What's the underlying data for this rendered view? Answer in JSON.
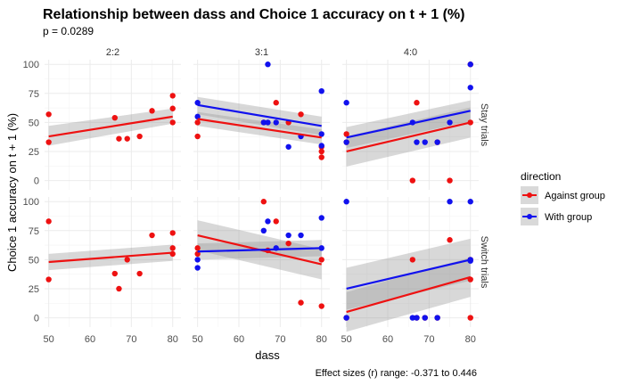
{
  "chart_data": {
    "type": "scatter",
    "title": "Relationship between dass and Choice 1 accuracy on t + 1 (%)",
    "subtitle": "p = 0.0289",
    "xlabel": "dass",
    "ylabel": "Choice 1 accuracy on t + 1 (%)",
    "caption": "Effect sizes (r) range: -0.371 to 0.446",
    "xlim": [
      49,
      82
    ],
    "ylim": [
      -8,
      104
    ],
    "x_ticks": [
      50,
      60,
      70,
      80
    ],
    "y_ticks": [
      0,
      25,
      50,
      75,
      100
    ],
    "grid": true,
    "columns": [
      "2:2",
      "3:1",
      "4:0"
    ],
    "rows": [
      "Stay trials",
      "Switch trials"
    ],
    "legend": {
      "title": "direction",
      "position": "right",
      "entries": [
        {
          "label": "Against group",
          "color": "#ee1111"
        },
        {
          "label": "With group",
          "color": "#1111ee"
        }
      ]
    },
    "panels": [
      {
        "column": "2:2",
        "row": "Stay trials",
        "series": [
          {
            "name": "Against group",
            "color": "#ee1111",
            "points": [
              [
                50,
                57
              ],
              [
                50,
                33
              ],
              [
                66,
                54
              ],
              [
                67,
                36
              ],
              [
                69,
                36
              ],
              [
                72,
                38
              ],
              [
                75,
                60
              ],
              [
                80,
                73
              ],
              [
                80,
                62
              ],
              [
                80,
                50
              ]
            ],
            "fit": {
              "x": [
                50,
                80
              ],
              "y": [
                38,
                55
              ]
            },
            "band": {
              "upper": [
                47,
                62
              ],
              "lower": [
                30,
                49
              ]
            }
          }
        ]
      },
      {
        "column": "3:1",
        "row": "Stay trials",
        "series": [
          {
            "name": "Against group",
            "color": "#ee1111",
            "points": [
              [
                50,
                50
              ],
              [
                50,
                38
              ],
              [
                66,
                50
              ],
              [
                69,
                67
              ],
              [
                72,
                50
              ],
              [
                75,
                57
              ],
              [
                80,
                25
              ],
              [
                80,
                20
              ],
              [
                80,
                29
              ]
            ],
            "fit": {
              "x": [
                50,
                80
              ],
              "y": [
                53,
                37
              ]
            },
            "band": {
              "upper": [
                59,
                44
              ],
              "lower": [
                47,
                31
              ]
            }
          },
          {
            "name": "With group",
            "color": "#1111ee",
            "points": [
              [
                50,
                67
              ],
              [
                50,
                55
              ],
              [
                66,
                50
              ],
              [
                67,
                100
              ],
              [
                67,
                50
              ],
              [
                69,
                50
              ],
              [
                72,
                29
              ],
              [
                75,
                38
              ],
              [
                80,
                77
              ],
              [
                80,
                40
              ],
              [
                80,
                30
              ]
            ],
            "fit": {
              "x": [
                50,
                80
              ],
              "y": [
                65,
                47
              ]
            },
            "band": {
              "upper": [
                72,
                55
              ],
              "lower": [
                57,
                39
              ]
            }
          }
        ]
      },
      {
        "column": "4:0",
        "row": "Stay trials",
        "series": [
          {
            "name": "Against group",
            "color": "#ee1111",
            "points": [
              [
                50,
                40
              ],
              [
                50,
                33
              ],
              [
                66,
                0
              ],
              [
                67,
                67
              ],
              [
                72,
                33
              ],
              [
                75,
                0
              ],
              [
                80,
                100
              ],
              [
                80,
                50
              ]
            ],
            "fit": {
              "x": [
                50,
                80
              ],
              "y": [
                25,
                50
              ]
            },
            "band": {
              "upper": [
                38,
                63
              ],
              "lower": [
                12,
                37
              ]
            }
          },
          {
            "name": "With group",
            "color": "#1111ee",
            "points": [
              [
                50,
                67
              ],
              [
                50,
                33
              ],
              [
                66,
                50
              ],
              [
                67,
                33
              ],
              [
                69,
                33
              ],
              [
                72,
                33
              ],
              [
                75,
                50
              ],
              [
                80,
                100
              ],
              [
                80,
                80
              ]
            ],
            "fit": {
              "x": [
                50,
                80
              ],
              "y": [
                37,
                60
              ]
            },
            "band": {
              "upper": [
                46,
                69
              ],
              "lower": [
                28,
                51
              ]
            }
          }
        ]
      },
      {
        "column": "2:2",
        "row": "Switch trials",
        "series": [
          {
            "name": "Against group",
            "color": "#ee1111",
            "points": [
              [
                50,
                83
              ],
              [
                50,
                33
              ],
              [
                66,
                38
              ],
              [
                67,
                25
              ],
              [
                69,
                50
              ],
              [
                72,
                38
              ],
              [
                75,
                71
              ],
              [
                80,
                73
              ],
              [
                80,
                60
              ],
              [
                80,
                55
              ]
            ],
            "fit": {
              "x": [
                50,
                80
              ],
              "y": [
                48,
                56
              ]
            },
            "band": {
              "upper": [
                55,
                63
              ],
              "lower": [
                41,
                49
              ]
            }
          }
        ]
      },
      {
        "column": "3:1",
        "row": "Switch trials",
        "series": [
          {
            "name": "Against group",
            "color": "#ee1111",
            "points": [
              [
                50,
                60
              ],
              [
                50,
                55
              ],
              [
                66,
                100
              ],
              [
                67,
                58
              ],
              [
                69,
                83
              ],
              [
                72,
                64
              ],
              [
                75,
                13
              ],
              [
                80,
                50
              ],
              [
                80,
                10
              ]
            ],
            "fit": {
              "x": [
                50,
                80
              ],
              "y": [
                71,
                46
              ]
            },
            "band": {
              "upper": [
                84,
                59
              ],
              "lower": [
                58,
                33
              ]
            }
          },
          {
            "name": "With group",
            "color": "#1111ee",
            "points": [
              [
                50,
                50
              ],
              [
                50,
                43
              ],
              [
                66,
                75
              ],
              [
                67,
                83
              ],
              [
                69,
                60
              ],
              [
                72,
                71
              ],
              [
                75,
                71
              ],
              [
                80,
                86
              ],
              [
                80,
                60
              ]
            ],
            "fit": {
              "x": [
                50,
                80
              ],
              "y": [
                57,
                60
              ]
            },
            "band": {
              "upper": [
                64,
                67
              ],
              "lower": [
                50,
                53
              ]
            }
          }
        ]
      },
      {
        "column": "4:0",
        "row": "Switch trials",
        "series": [
          {
            "name": "Against group",
            "color": "#ee1111",
            "points": [
              [
                50,
                0
              ],
              [
                66,
                50
              ],
              [
                67,
                0
              ],
              [
                69,
                0
              ],
              [
                72,
                0
              ],
              [
                75,
                67
              ],
              [
                80,
                0
              ],
              [
                80,
                33
              ],
              [
                80,
                50
              ]
            ],
            "fit": {
              "x": [
                50,
                80
              ],
              "y": [
                5,
                35
              ]
            },
            "band": {
              "upper": [
                22,
                52
              ],
              "lower": [
                -12,
                18
              ]
            }
          },
          {
            "name": "With group",
            "color": "#1111ee",
            "points": [
              [
                50,
                100
              ],
              [
                50,
                0
              ],
              [
                66,
                0
              ],
              [
                67,
                0
              ],
              [
                69,
                0
              ],
              [
                72,
                0
              ],
              [
                75,
                100
              ],
              [
                80,
                100
              ],
              [
                80,
                50
              ],
              [
                80,
                49
              ]
            ],
            "fit": {
              "x": [
                50,
                80
              ],
              "y": [
                25,
                50
              ]
            },
            "band": {
              "upper": [
                43,
                68
              ],
              "lower": [
                7,
                32
              ]
            }
          }
        ]
      }
    ]
  }
}
